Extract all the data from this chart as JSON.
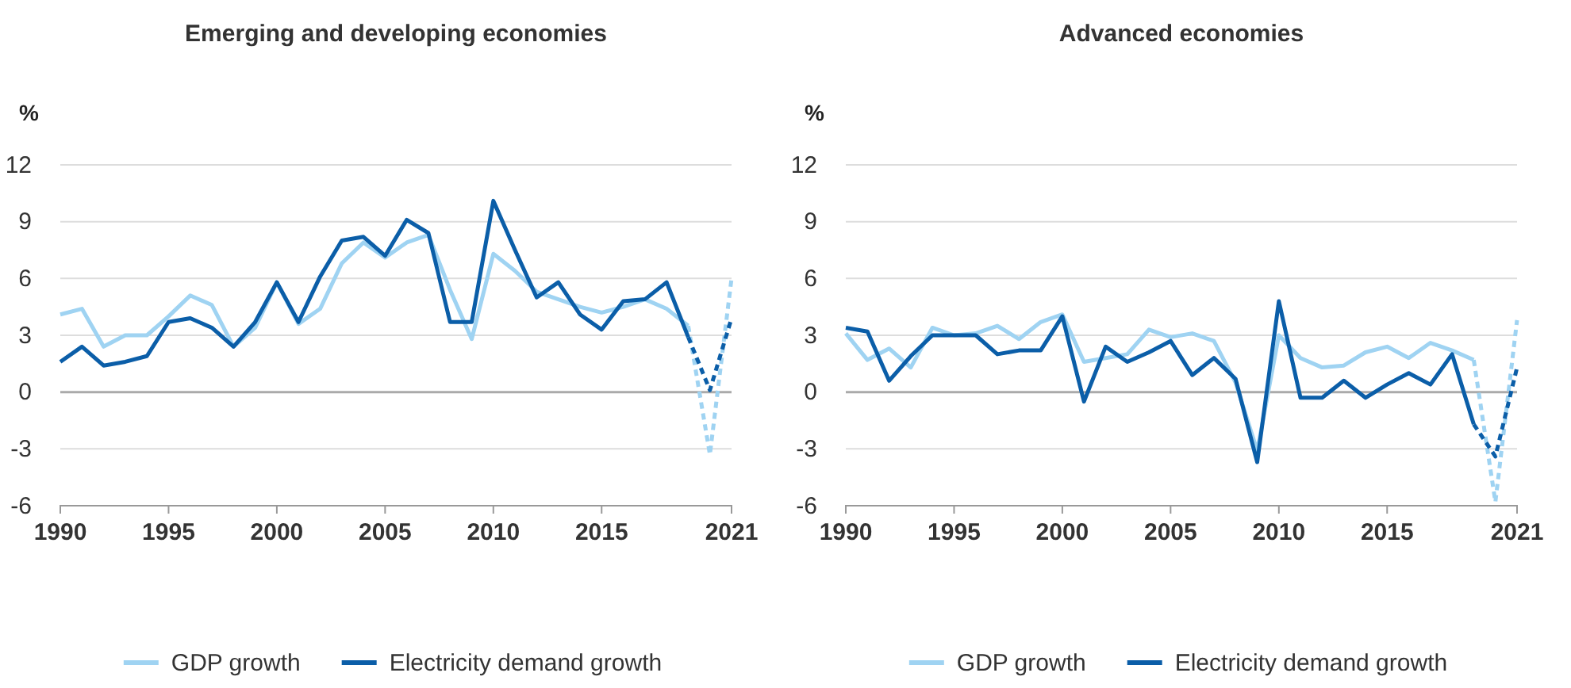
{
  "chart_data": [
    {
      "type": "line",
      "title": "Emerging and developing economies",
      "ylabel": "%",
      "xlim": [
        1990,
        2021
      ],
      "xticks": [
        1990,
        1995,
        2000,
        2005,
        2010,
        2015,
        2021
      ],
      "ylim": [
        -6,
        12
      ],
      "yticks": [
        -6,
        -3,
        0,
        3,
        6,
        9,
        12
      ],
      "grid": "y",
      "legend": "bottom",
      "series": [
        {
          "name": "GDP growth",
          "color": "#9fd3f2",
          "line_style": "solid",
          "x": [
            1990,
            1991,
            1992,
            1993,
            1994,
            1995,
            1996,
            1997,
            1998,
            1999,
            2000,
            2001,
            2002,
            2003,
            2004,
            2005,
            2006,
            2007,
            2008,
            2009,
            2010,
            2011,
            2012,
            2013,
            2014,
            2015,
            2016,
            2017,
            2018,
            2019
          ],
          "values": [
            4.1,
            4.4,
            2.4,
            3.0,
            3.0,
            4.0,
            5.1,
            4.6,
            2.4,
            3.4,
            5.8,
            3.6,
            4.4,
            6.8,
            7.9,
            7.1,
            7.9,
            8.3,
            5.4,
            2.8,
            7.3,
            6.4,
            5.3,
            4.9,
            4.5,
            4.2,
            4.5,
            4.9,
            4.4,
            3.5
          ]
        },
        {
          "color": "#9fd3f2",
          "line_style": "dashed",
          "x": [
            2019,
            2020,
            2021
          ],
          "values": [
            3.5,
            -3.3,
            6.0
          ]
        },
        {
          "name": "Electricity demand growth",
          "color": "#0b5ea8",
          "line_style": "solid",
          "x": [
            1990,
            1991,
            1992,
            1993,
            1994,
            1995,
            1996,
            1997,
            1998,
            1999,
            2000,
            2001,
            2002,
            2003,
            2004,
            2005,
            2006,
            2007,
            2008,
            2009,
            2010,
            2011,
            2012,
            2013,
            2014,
            2015,
            2016,
            2017,
            2018,
            2019
          ],
          "values": [
            1.6,
            2.4,
            1.4,
            1.6,
            1.9,
            3.7,
            3.9,
            3.4,
            2.4,
            3.7,
            5.8,
            3.7,
            6.1,
            8.0,
            8.2,
            7.2,
            9.1,
            8.4,
            3.7,
            3.7,
            10.1,
            7.5,
            5.0,
            5.8,
            4.1,
            3.3,
            4.8,
            4.9,
            5.8,
            2.9
          ]
        },
        {
          "color": "#0b5ea8",
          "line_style": "dashed",
          "x": [
            2019,
            2020,
            2021
          ],
          "values": [
            2.9,
            0.1,
            3.9
          ]
        }
      ]
    },
    {
      "type": "line",
      "title": "Advanced economies",
      "ylabel": "%",
      "xlim": [
        1990,
        2021
      ],
      "xticks": [
        1990,
        1995,
        2000,
        2005,
        2010,
        2015,
        2021
      ],
      "ylim": [
        -6,
        12
      ],
      "yticks": [
        -6,
        -3,
        0,
        3,
        6,
        9,
        12
      ],
      "grid": "y",
      "legend": "bottom",
      "series": [
        {
          "name": "GDP growth",
          "color": "#9fd3f2",
          "line_style": "solid",
          "x": [
            1990,
            1991,
            1992,
            1993,
            1994,
            1995,
            1996,
            1997,
            1998,
            1999,
            2000,
            2001,
            2002,
            2003,
            2004,
            2005,
            2006,
            2007,
            2008,
            2009,
            2010,
            2011,
            2012,
            2013,
            2014,
            2015,
            2016,
            2017,
            2018,
            2019
          ],
          "values": [
            3.1,
            1.7,
            2.3,
            1.3,
            3.4,
            3.0,
            3.1,
            3.5,
            2.8,
            3.7,
            4.1,
            1.6,
            1.8,
            2.0,
            3.3,
            2.9,
            3.1,
            2.7,
            0.5,
            -3.1,
            3.0,
            1.8,
            1.3,
            1.4,
            2.1,
            2.4,
            1.8,
            2.6,
            2.2,
            1.7
          ]
        },
        {
          "color": "#9fd3f2",
          "line_style": "dashed",
          "x": [
            2019,
            2020,
            2021
          ],
          "values": [
            1.7,
            -5.8,
            3.8
          ]
        },
        {
          "name": "Electricity demand growth",
          "color": "#0b5ea8",
          "line_style": "solid",
          "x": [
            1990,
            1991,
            1992,
            1993,
            1994,
            1995,
            1996,
            1997,
            1998,
            1999,
            2000,
            2001,
            2002,
            2003,
            2004,
            2005,
            2006,
            2007,
            2008,
            2009,
            2010,
            2011,
            2012,
            2013,
            2014,
            2015,
            2016,
            2017,
            2018,
            2019
          ],
          "values": [
            3.4,
            3.2,
            0.6,
            1.9,
            3.0,
            3.0,
            3.0,
            2.0,
            2.2,
            2.2,
            4.0,
            -0.5,
            2.4,
            1.6,
            2.1,
            2.7,
            0.9,
            1.8,
            0.7,
            -3.7,
            4.8,
            -0.3,
            -0.3,
            0.6,
            -0.3,
            0.4,
            1.0,
            0.4,
            2.0,
            -1.7
          ]
        },
        {
          "color": "#0b5ea8",
          "line_style": "dashed",
          "x": [
            2019,
            2020,
            2021
          ],
          "values": [
            -1.7,
            -3.4,
            1.3
          ]
        }
      ]
    }
  ]
}
